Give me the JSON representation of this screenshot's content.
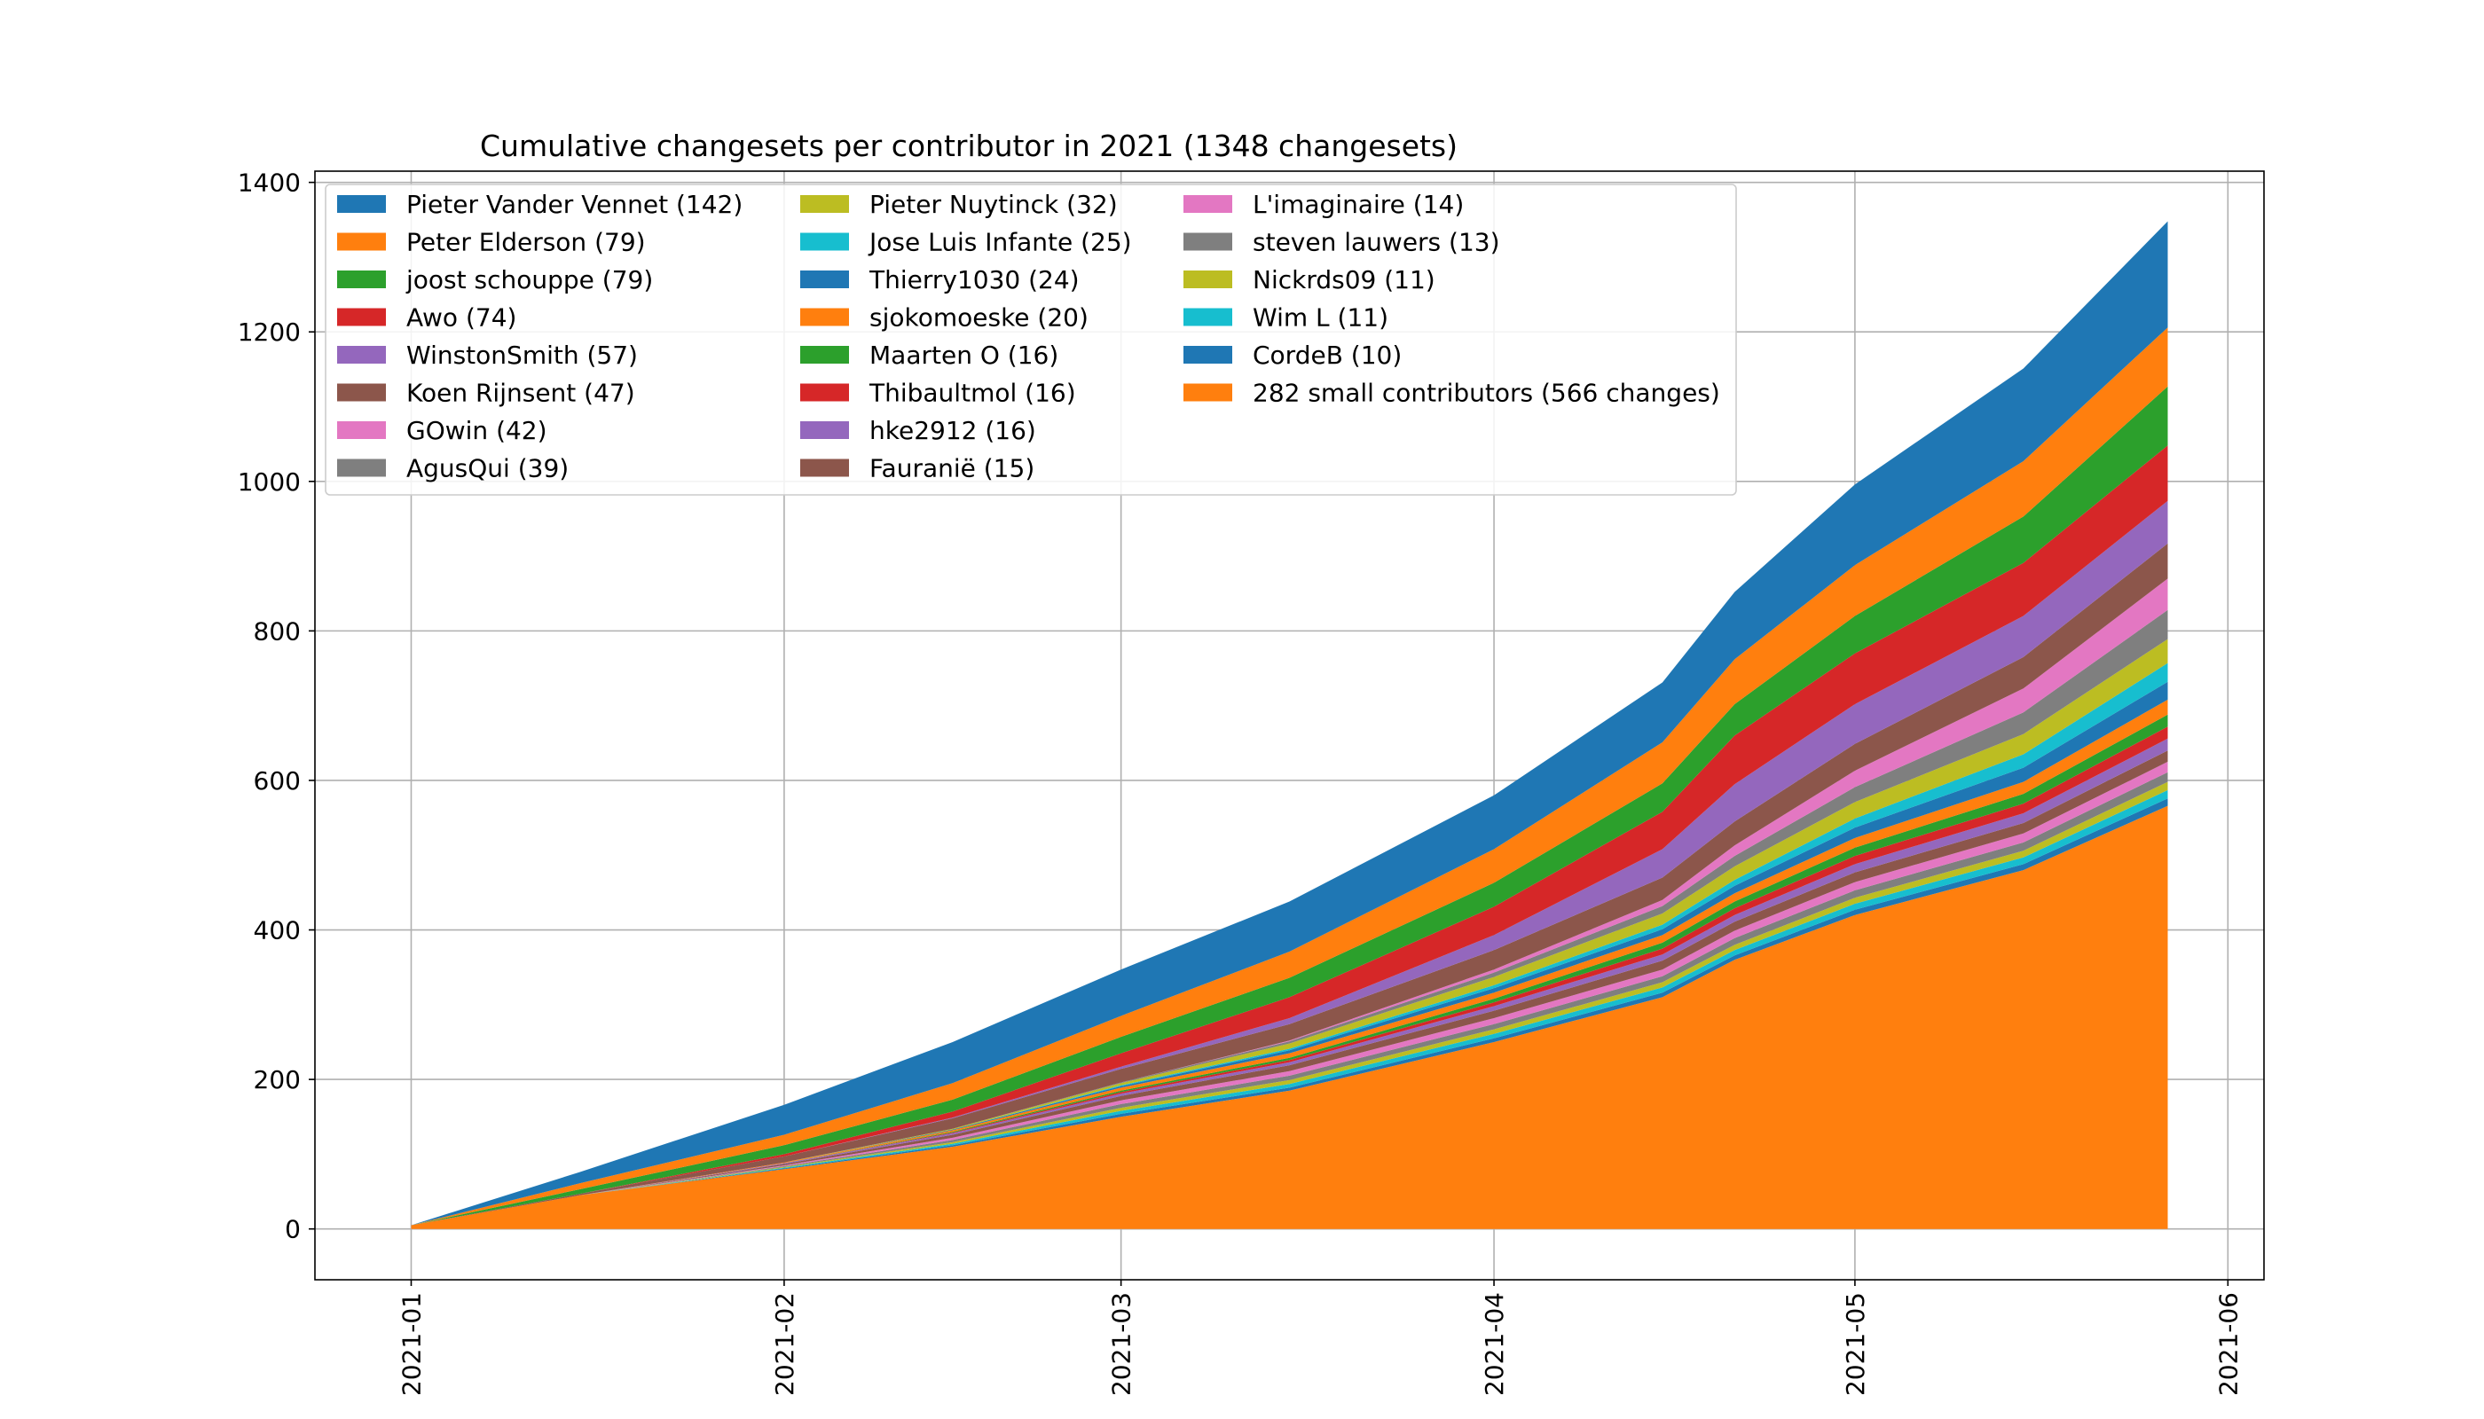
{
  "chart_data": {
    "type": "area",
    "title": "Cumulative changesets per contributor in 2021 (1348 changesets)",
    "xlabel": "",
    "ylabel": "",
    "x_ticks": [
      "2021-01",
      "2021-02",
      "2021-03",
      "2021-04",
      "2021-05",
      "2021-06"
    ],
    "y_ticks": [
      "0",
      "200",
      "400",
      "600",
      "800",
      "1000",
      "1200",
      "1400"
    ],
    "xlim": [
      "2020-12-24",
      "2021-06-04"
    ],
    "ylim": [
      -68,
      1415
    ],
    "grid": true,
    "legend_position": "top-left",
    "x": [
      "2021-01-01",
      "2021-01-15",
      "2021-02-01",
      "2021-02-15",
      "2021-03-01",
      "2021-03-15",
      "2021-04-01",
      "2021-04-15",
      "2021-04-21",
      "2021-05-01",
      "2021-05-15",
      "2021-05-27"
    ],
    "series": [
      {
        "name": "282 small contributors (566 changes)",
        "color": "#ff7f0e",
        "values": [
          5,
          45,
          80,
          110,
          150,
          185,
          250,
          310,
          360,
          420,
          480,
          566
        ]
      },
      {
        "name": "CordeB (10)",
        "color": "#1f77b4",
        "values": [
          0,
          0,
          1,
          2,
          4,
          4,
          5,
          6,
          6,
          7,
          8,
          10
        ]
      },
      {
        "name": "Wim L (11)",
        "color": "#17becf",
        "values": [
          0,
          0,
          1,
          2,
          4,
          5,
          6,
          7,
          7,
          8,
          9,
          11
        ]
      },
      {
        "name": "Nickrds09 (11)",
        "color": "#bcbd22",
        "values": [
          0,
          0,
          1,
          2,
          4,
          5,
          6,
          7,
          7,
          8,
          9,
          11
        ]
      },
      {
        "name": "steven lauwers (13)",
        "color": "#7f7f7f",
        "values": [
          0,
          0,
          1,
          3,
          5,
          6,
          7,
          8,
          9,
          10,
          11,
          13
        ]
      },
      {
        "name": "L'imaginaire (14)",
        "color": "#e377c2",
        "values": [
          0,
          0,
          1,
          3,
          5,
          6,
          8,
          9,
          10,
          11,
          12,
          14
        ]
      },
      {
        "name": "Fauraniё (15)",
        "color": "#8c564b",
        "values": [
          0,
          0,
          2,
          4,
          6,
          8,
          10,
          12,
          12,
          13,
          14,
          15
        ]
      },
      {
        "name": "hke2912 (16)",
        "color": "#9467bd",
        "values": [
          0,
          0,
          1,
          2,
          3,
          4,
          6,
          8,
          9,
          11,
          13,
          16
        ]
      },
      {
        "name": "Thibaultmol (16)",
        "color": "#d62728",
        "values": [
          0,
          0,
          0,
          1,
          2,
          3,
          5,
          8,
          9,
          11,
          13,
          16
        ]
      },
      {
        "name": "Maarten O (16)",
        "color": "#2ca02c",
        "values": [
          0,
          0,
          0,
          1,
          2,
          3,
          5,
          8,
          9,
          11,
          13,
          16
        ]
      },
      {
        "name": "sjokomoeske (20)",
        "color": "#ff7f0e",
        "values": [
          0,
          0,
          1,
          2,
          4,
          6,
          8,
          10,
          11,
          13,
          16,
          20
        ]
      },
      {
        "name": "Thierry1030 (24)",
        "color": "#1f77b4",
        "values": [
          0,
          0,
          0,
          1,
          2,
          4,
          6,
          8,
          10,
          14,
          19,
          24
        ]
      },
      {
        "name": "Jose Luis Infante (25)",
        "color": "#17becf",
        "values": [
          0,
          0,
          0,
          0,
          1,
          2,
          4,
          6,
          8,
          12,
          18,
          25
        ]
      },
      {
        "name": "Pieter Nuytinck (32)",
        "color": "#bcbd22",
        "values": [
          0,
          0,
          0,
          1,
          3,
          7,
          11,
          15,
          18,
          22,
          27,
          32
        ]
      },
      {
        "name": "AgusQui (39)",
        "color": "#7f7f7f",
        "values": [
          0,
          0,
          0,
          0,
          1,
          3,
          6,
          10,
          14,
          20,
          29,
          39
        ]
      },
      {
        "name": "GOwin (42)",
        "color": "#e377c2",
        "values": [
          0,
          0,
          0,
          0,
          0,
          1,
          4,
          8,
          14,
          22,
          32,
          42
        ]
      },
      {
        "name": "Koen Rijnsent (47)",
        "color": "#8c564b",
        "values": [
          0,
          2,
          8,
          14,
          18,
          22,
          26,
          30,
          32,
          36,
          42,
          47
        ]
      },
      {
        "name": "WinstonSmith (57)",
        "color": "#9467bd",
        "values": [
          0,
          0,
          0,
          1,
          3,
          8,
          20,
          38,
          50,
          53,
          55,
          57
        ]
      },
      {
        "name": "Awo (74)",
        "color": "#d62728",
        "values": [
          0,
          0,
          3,
          8,
          18,
          28,
          38,
          50,
          65,
          68,
          71,
          74
        ]
      },
      {
        "name": "joost schouppe (79)",
        "color": "#2ca02c",
        "values": [
          0,
          6,
          12,
          16,
          22,
          26,
          32,
          38,
          42,
          50,
          62,
          79
        ]
      },
      {
        "name": "Peter Elderson (79)",
        "color": "#ff7f0e",
        "values": [
          0,
          8,
          14,
          22,
          28,
          35,
          45,
          55,
          60,
          68,
          74,
          79
        ]
      },
      {
        "name": "Pieter Vander Vennet (142)",
        "color": "#1f77b4",
        "values": [
          0,
          15,
          40,
          55,
          62,
          67,
          72,
          80,
          90,
          108,
          124,
          142
        ]
      }
    ]
  }
}
